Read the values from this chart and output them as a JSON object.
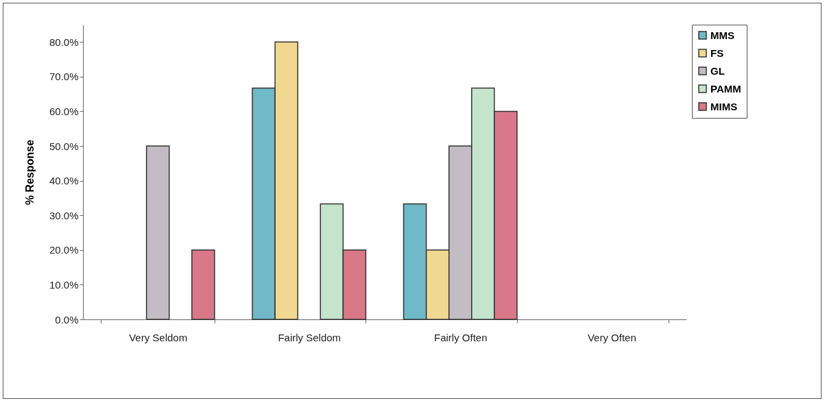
{
  "chart_data": {
    "type": "bar",
    "ylabel": "% Response",
    "categories": [
      "Very Seldom",
      "Fairly Seldom",
      "Fairly Often",
      "Very Often"
    ],
    "series": [
      {
        "name": "MMS",
        "color": "#6fb9c8",
        "values": [
          0,
          66.7,
          33.3,
          0
        ]
      },
      {
        "name": "FS",
        "color": "#f0d890",
        "values": [
          0,
          80,
          20,
          0
        ]
      },
      {
        "name": "GL",
        "color": "#c4bcc4",
        "values": [
          50,
          0,
          50,
          0
        ]
      },
      {
        "name": "PAMM",
        "color": "#c4e4cc",
        "values": [
          0,
          33.3,
          66.7,
          0
        ]
      },
      {
        "name": "MIMS",
        "color": "#d87888",
        "values": [
          20,
          20,
          60,
          0
        ]
      }
    ],
    "ylim": [
      0,
      85
    ],
    "yticks": [
      {
        "value": 0,
        "label": "0.0%"
      },
      {
        "value": 10,
        "label": "10.0%"
      },
      {
        "value": 20,
        "label": "20.0%"
      },
      {
        "value": 30,
        "label": "30.0%"
      },
      {
        "value": 40,
        "label": "40.0%"
      },
      {
        "value": 50,
        "label": "50.0%"
      },
      {
        "value": 60,
        "label": "60.0%"
      },
      {
        "value": 70,
        "label": "70.0%"
      },
      {
        "value": 80,
        "label": "80.0%"
      }
    ],
    "grid": false,
    "legend": "top right"
  }
}
